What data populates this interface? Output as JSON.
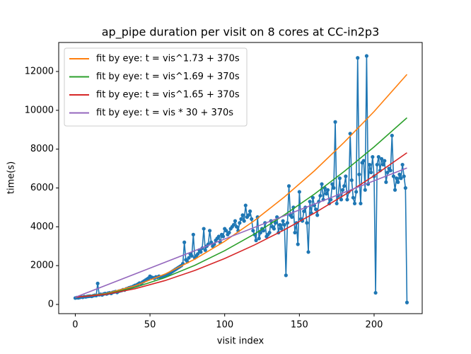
{
  "chart_data": {
    "type": "line",
    "title": "ap_pipe duration per visit on 8 cores at CC-in2p3",
    "xlabel": "visit index",
    "ylabel": "time(s)",
    "xlim": [
      -11.1,
      232.2
    ],
    "ylim": [
      -474,
      13494
    ],
    "xticks": [
      0,
      50,
      100,
      150,
      200
    ],
    "yticks": [
      0,
      2000,
      4000,
      6000,
      8000,
      10000,
      12000
    ],
    "grid": false,
    "legend": "upper left",
    "series": [
      {
        "color": "#1f77b4",
        "marker": true,
        "x": [
          0,
          1,
          2,
          3,
          4,
          5,
          6,
          7,
          8,
          9,
          10,
          11,
          12,
          13,
          14,
          15,
          16,
          17,
          18,
          19,
          20,
          21,
          22,
          23,
          24,
          25,
          26,
          27,
          28,
          29,
          30,
          31,
          32,
          33,
          34,
          35,
          36,
          37,
          38,
          39,
          40,
          41,
          42,
          43,
          44,
          45,
          46,
          47,
          48,
          49,
          50,
          51,
          52,
          53,
          54,
          55,
          56,
          57,
          58,
          59,
          60,
          61,
          62,
          63,
          64,
          65,
          66,
          67,
          68,
          69,
          70,
          71,
          72,
          73,
          74,
          75,
          76,
          77,
          78,
          79,
          80,
          81,
          82,
          83,
          84,
          85,
          86,
          87,
          88,
          89,
          90,
          91,
          92,
          93,
          94,
          95,
          96,
          97,
          98,
          99,
          100,
          101,
          102,
          103,
          104,
          105,
          106,
          107,
          108,
          109,
          110,
          111,
          112,
          113,
          114,
          115,
          116,
          117,
          118,
          119,
          120,
          121,
          122,
          123,
          124,
          125,
          126,
          127,
          128,
          129,
          130,
          131,
          132,
          133,
          134,
          135,
          136,
          137,
          138,
          139,
          140,
          141,
          142,
          143,
          144,
          145,
          146,
          147,
          148,
          149,
          150,
          151,
          152,
          153,
          154,
          155,
          156,
          157,
          158,
          159,
          160,
          161,
          162,
          163,
          164,
          165,
          166,
          167,
          168,
          169,
          170,
          171,
          172,
          173,
          174,
          175,
          176,
          177,
          178,
          179,
          180,
          181,
          182,
          183,
          184,
          185,
          186,
          187,
          188,
          189,
          190,
          191,
          192,
          193,
          194,
          195,
          196,
          197,
          198,
          199,
          200,
          201,
          202,
          203,
          204,
          205,
          206,
          207,
          208,
          209,
          210,
          211,
          212,
          213,
          214,
          215,
          216,
          217,
          218,
          219,
          220,
          221,
          222
        ],
        "values": [
          330,
          350,
          340,
          360,
          380,
          370,
          400,
          390,
          410,
          420,
          430,
          420,
          450,
          470,
          460,
          1080,
          500,
          520,
          490,
          540,
          560,
          540,
          580,
          600,
          570,
          620,
          640,
          660,
          620,
          680,
          700,
          720,
          760,
          740,
          800,
          820,
          860,
          880,
          900,
          940,
          980,
          1000,
          1050,
          1100,
          1080,
          1150,
          1200,
          1250,
          1300,
          1350,
          1450,
          1400,
          1380,
          1350,
          1420,
          1400,
          1450,
          1380,
          1400,
          1450,
          1480,
          1500,
          1550,
          1600,
          1650,
          1700,
          1750,
          1800,
          1850,
          1900,
          1950,
          2000,
          2100,
          3200,
          2300,
          2200,
          2400,
          2600,
          2500,
          3600,
          2400,
          2500,
          2600,
          2800,
          2700,
          2900,
          3900,
          2800,
          3000,
          3100,
          3800,
          3200,
          3000,
          3100,
          3300,
          3400,
          3500,
          3200,
          3600,
          3500,
          3900,
          3800,
          3600,
          3700,
          3900,
          4000,
          4100,
          4300,
          4000,
          3800,
          4200,
          4400,
          4600,
          4300,
          5100,
          4500,
          4600,
          4800,
          4400,
          3800,
          3600,
          3300,
          4500,
          3400,
          3700,
          3900,
          3800,
          4200,
          3500,
          3600,
          3700,
          4300,
          4000,
          3900,
          4200,
          4500,
          3700,
          4100,
          3900,
          4300,
          4100,
          1500,
          4200,
          6100,
          4600,
          4500,
          5000,
          3700,
          4200,
          3100,
          5800,
          4400,
          4300,
          4800,
          5000,
          4200,
          2700,
          5300,
          4700,
          5500,
          5100,
          4900,
          4600,
          5300,
          5600,
          6200,
          5400,
          6000,
          5700,
          5900,
          5200,
          5400,
          6200,
          6000,
          9400,
          5200,
          5600,
          6500,
          5400,
          5900,
          6100,
          6600,
          5400,
          5800,
          8800,
          6400,
          5500,
          5200,
          5800,
          12700,
          6700,
          5200,
          7300,
          7400,
          5900,
          12800,
          6200,
          7200,
          6800,
          7600,
          6600,
          600,
          7200,
          7600,
          6900,
          7500,
          7200,
          7400,
          6300,
          6800,
          7000,
          6900,
          8700,
          6600,
          5900,
          6500,
          6300,
          6700,
          6500,
          7200,
          6600,
          6000,
          100
        ]
      },
      {
        "name": "fit by eye: t = vis^1.73 + 370s",
        "color": "#ff7f0e",
        "x": [
          0,
          20,
          40,
          60,
          80,
          100,
          120,
          140,
          160,
          180,
          200,
          222
        ],
        "values": [
          370,
          548,
          961,
          1562,
          2331,
          3254,
          4326,
          5538,
          6880,
          8352,
          9938,
          11848
        ]
      },
      {
        "name": "fit by eye: t = vis^1.69 + 370s",
        "color": "#2ca02c",
        "x": [
          0,
          20,
          40,
          60,
          80,
          100,
          120,
          140,
          160,
          180,
          200,
          222
        ],
        "values": [
          370,
          528,
          880,
          1381,
          2016,
          2769,
          3633,
          4617,
          5679,
          6850,
          8116,
          9615
        ]
      },
      {
        "name": "fit by eye: t = vis^1.65 + 370s",
        "color": "#d62728",
        "x": [
          0,
          20,
          40,
          60,
          80,
          100,
          120,
          140,
          160,
          180,
          200,
          222
        ],
        "values": [
          370,
          510,
          810,
          1228,
          1750,
          2365,
          3066,
          3848,
          4703,
          5633,
          6632,
          7814
        ]
      },
      {
        "name": "fit by eye: t = vis * 30 + 370s",
        "color": "#9467bd",
        "x": [
          0,
          222
        ],
        "values": [
          370,
          7030
        ]
      }
    ]
  }
}
